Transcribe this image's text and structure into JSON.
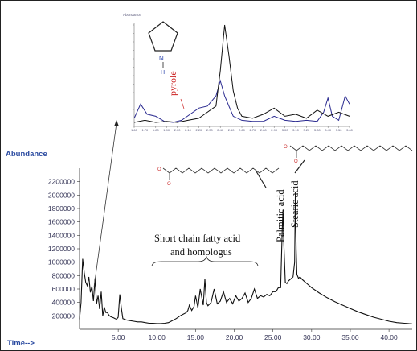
{
  "chart_data": [
    {
      "type": "line",
      "ylabel": "Abundance",
      "xlabel": "Time-->",
      "xlim": [
        0,
        43
      ],
      "ylim": [
        0,
        2400000
      ],
      "x_ticks": [
        "5.00",
        "10.00",
        "15.00",
        "20.00",
        "25.00",
        "30.00",
        "35.00",
        "40.00"
      ],
      "x_tick_values": [
        5,
        10,
        15,
        20,
        25,
        30,
        35,
        40
      ],
      "y_ticks": [
        "200000",
        "400000",
        "600000",
        "800000",
        "1000000",
        "1200000",
        "1400000",
        "1600000",
        "1800000",
        "2000000",
        "2200000"
      ],
      "y_tick_values": [
        200000,
        400000,
        600000,
        800000,
        1000000,
        1200000,
        1400000,
        1600000,
        1800000,
        2000000,
        2200000
      ],
      "grid": false,
      "series": [
        {
          "color": "#111111",
          "x": [
            0.0,
            0.2,
            0.4,
            0.6,
            0.8,
            1.0,
            1.2,
            1.4,
            1.6,
            1.8,
            2.0,
            2.2,
            2.4,
            2.6,
            2.8,
            3.0,
            3.2,
            3.4,
            3.6,
            3.8,
            4.0,
            4.2,
            4.4,
            4.6,
            4.8,
            5.0,
            5.2,
            5.4,
            5.6,
            5.8,
            6.0,
            6.5,
            7.0,
            7.5,
            8.0,
            8.5,
            9.0,
            9.5,
            10.0,
            10.5,
            11.0,
            11.5,
            12.0,
            12.5,
            13.0,
            13.5,
            13.8,
            14.0,
            14.2,
            14.5,
            14.8,
            15.0,
            15.3,
            15.6,
            16.0,
            16.2,
            16.4,
            16.6,
            17.0,
            17.4,
            17.8,
            18.2,
            18.6,
            19.0,
            19.4,
            19.8,
            20.2,
            20.6,
            21.0,
            21.4,
            21.8,
            22.2,
            22.6,
            23.0,
            23.4,
            23.8,
            24.2,
            24.6,
            25.0,
            25.4,
            25.7,
            26.0,
            26.2,
            26.3,
            26.4,
            26.6,
            26.8,
            27.0,
            27.2,
            27.4,
            27.6,
            27.8,
            27.9,
            28.0,
            28.1,
            28.3,
            28.5,
            28.8,
            29.2,
            29.6,
            30.0,
            31.0,
            32.0,
            33.0,
            34.0,
            35.0,
            36.0,
            37.0,
            38.0,
            39.0,
            40.0,
            41.0,
            42.0,
            43.0
          ],
          "y": [
            150000,
            400000,
            1050000,
            850000,
            700000,
            650000,
            780000,
            550000,
            640000,
            420000,
            760000,
            380000,
            500000,
            300000,
            560000,
            200000,
            330000,
            250000,
            250000,
            210000,
            190000,
            180000,
            170000,
            160000,
            150000,
            180000,
            520000,
            320000,
            160000,
            150000,
            140000,
            130000,
            120000,
            110000,
            110000,
            100000,
            90000,
            90000,
            85000,
            85000,
            90000,
            100000,
            130000,
            160000,
            200000,
            230000,
            250000,
            280000,
            360000,
            280000,
            340000,
            500000,
            320000,
            600000,
            360000,
            750000,
            400000,
            350000,
            400000,
            600000,
            380000,
            420000,
            560000,
            400000,
            460000,
            380000,
            500000,
            420000,
            460000,
            540000,
            400000,
            460000,
            600000,
            460000,
            500000,
            480000,
            520000,
            500000,
            560000,
            560000,
            620000,
            620000,
            1500000,
            1780000,
            1300000,
            700000,
            680000,
            720000,
            740000,
            760000,
            780000,
            1000000,
            2050000,
            1200000,
            820000,
            760000,
            780000,
            740000,
            700000,
            660000,
            620000,
            540000,
            470000,
            410000,
            360000,
            310000,
            260000,
            220000,
            180000,
            150000,
            120000,
            100000,
            90000,
            80000
          ]
        }
      ],
      "annotations": [
        {
          "text": "Palmitic acid",
          "x": 26.3
        },
        {
          "text": "Stearic acid",
          "x": 27.9
        },
        {
          "text": "Short chain fatty acid",
          "x_range": [
            10,
            23
          ]
        },
        {
          "text": "and homologus"
        }
      ]
    },
    {
      "type": "line",
      "ylabel": "Abundance",
      "x_ticks": [
        "1.60",
        "1.70",
        "1.80",
        "1.90",
        "2.00",
        "2.10",
        "2.20",
        "2.30",
        "2.40",
        "2.50",
        "2.60",
        "2.70",
        "2.80",
        "2.90",
        "3.00",
        "3.10",
        "3.20",
        "3.30",
        "3.40",
        "3.50",
        "3.60"
      ],
      "xlim": [
        0,
        1
      ],
      "ylim": [
        0,
        1
      ],
      "series": [
        {
          "color": "#2a2a90",
          "x": [
            0.0,
            0.03,
            0.06,
            0.1,
            0.14,
            0.18,
            0.22,
            0.26,
            0.3,
            0.34,
            0.38,
            0.4,
            0.42,
            0.44,
            0.46,
            0.5,
            0.55,
            0.6,
            0.65,
            0.7,
            0.75,
            0.8,
            0.85,
            0.88,
            0.9,
            0.92,
            0.95,
            0.98,
            1.0
          ],
          "y": [
            0.08,
            0.22,
            0.12,
            0.1,
            0.05,
            0.04,
            0.06,
            0.12,
            0.18,
            0.2,
            0.3,
            0.45,
            0.3,
            0.2,
            0.1,
            0.06,
            0.05,
            0.05,
            0.1,
            0.06,
            0.05,
            0.06,
            0.05,
            0.14,
            0.28,
            0.1,
            0.06,
            0.3,
            0.22
          ]
        },
        {
          "color": "#111111",
          "x": [
            0.0,
            0.05,
            0.1,
            0.15,
            0.2,
            0.25,
            0.3,
            0.34,
            0.38,
            0.4,
            0.42,
            0.44,
            0.46,
            0.48,
            0.5,
            0.55,
            0.6,
            0.65,
            0.7,
            0.75,
            0.8,
            0.85,
            0.9,
            0.95,
            1.0
          ],
          "y": [
            0.04,
            0.06,
            0.04,
            0.05,
            0.04,
            0.06,
            0.08,
            0.14,
            0.2,
            0.55,
            1.0,
            0.7,
            0.35,
            0.18,
            0.1,
            0.08,
            0.12,
            0.18,
            0.1,
            0.12,
            0.08,
            0.16,
            0.1,
            0.14,
            0.1
          ]
        }
      ],
      "annotations": [
        {
          "text": "pyrole"
        },
        {
          "text": "N"
        },
        {
          "text": "H"
        }
      ]
    }
  ]
}
